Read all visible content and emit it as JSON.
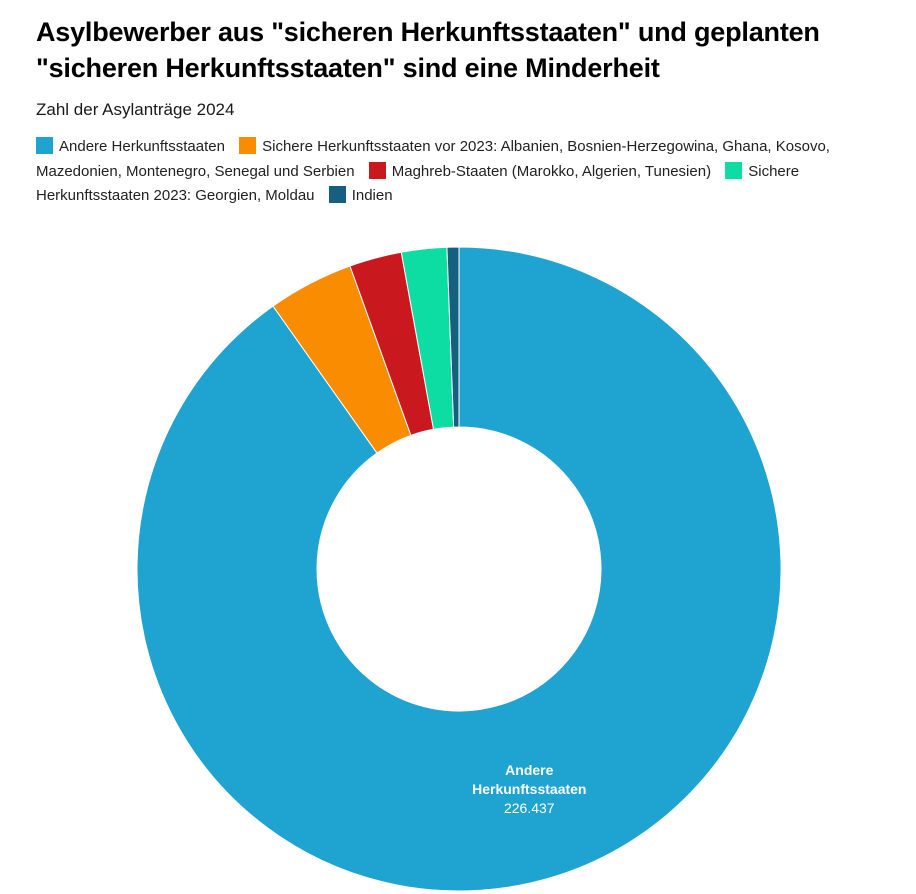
{
  "title": "Asylbewerber aus \"sicheren Herkunftsstaaten\" und geplanten \"sicheren Herkunftsstaaten\" sind eine Minderheit",
  "subtitle": "Zahl der Asylanträge 2024",
  "chart_data": {
    "type": "pie",
    "donut": true,
    "legend_position": "top",
    "slices": [
      {
        "name": "Andere Herkunftsstaaten",
        "value": 226437,
        "value_label": "226.437",
        "label_lines": [
          "Andere",
          "Herkunftsstaaten"
        ],
        "color": "#1fa3d0"
      },
      {
        "name": "Sichere Herkunftsstaaten vor 2023: Albanien, Bosnien-Herzegowina, Ghana, Kosovo, Mazedonien, Montenegro, Senegal und Serbien",
        "value": 10800,
        "color": "#f98c00"
      },
      {
        "name": "Maghreb-Staaten (Marokko, Algerien, Tunesien)",
        "value": 6600,
        "color": "#c9191f"
      },
      {
        "name": "Sichere Herkunftsstaaten 2023: Georgien, Moldau",
        "value": 5700,
        "color": "#0ddca3"
      },
      {
        "name": "Indien",
        "value": 1500,
        "color": "#14607e"
      }
    ]
  }
}
